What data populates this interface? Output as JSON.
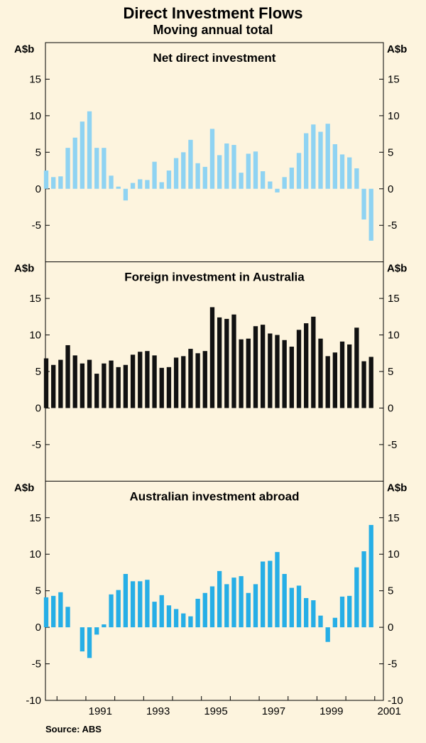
{
  "title": "Direct Investment Flows",
  "subtitle": "Moving annual total",
  "source": "Source: ABS",
  "unit": "A$b",
  "yticks": [
    "15",
    "10",
    "5",
    "0",
    "-5"
  ],
  "bottom_tick": "-10",
  "x_ticks": [
    "1991",
    "1993",
    "1995",
    "1997",
    "1999",
    "2001"
  ],
  "colors": {
    "background": "#fdf4de",
    "net": "#8fd3f2",
    "foreign": "#111111",
    "abroad": "#26aee6",
    "frame": "#000000"
  },
  "chart_data": [
    {
      "type": "bar",
      "title": "Net direct investment",
      "ylabel": "A$b",
      "ylim": [
        -10,
        20
      ],
      "x_range": [
        1989.6,
        2001.3
      ],
      "x_start": 1989.625,
      "x_step": 0.25,
      "values": [
        2.5,
        1.6,
        1.7,
        5.6,
        7.0,
        9.2,
        10.6,
        5.6,
        5.6,
        1.8,
        0.3,
        -1.6,
        0.8,
        1.3,
        1.2,
        3.7,
        0.9,
        2.5,
        4.2,
        5.0,
        6.7,
        3.5,
        3.0,
        8.2,
        4.6,
        6.2,
        6.0,
        2.2,
        4.8,
        5.1,
        2.4,
        1.0,
        -0.5,
        1.6,
        2.9,
        4.9,
        7.6,
        8.8,
        7.8,
        8.9,
        6.1,
        4.7,
        4.3,
        2.8,
        -4.2,
        -7.1
      ]
    },
    {
      "type": "bar",
      "title": "Foreign investment in Australia",
      "ylabel": "A$b",
      "ylim": [
        -10,
        20
      ],
      "x_range": [
        1989.6,
        2001.3
      ],
      "x_start": 1989.625,
      "x_step": 0.25,
      "values": [
        6.8,
        5.9,
        6.6,
        8.6,
        7.2,
        6.1,
        6.6,
        4.7,
        6.1,
        6.5,
        5.6,
        5.9,
        7.3,
        7.7,
        7.8,
        7.2,
        5.5,
        5.6,
        6.9,
        7.1,
        8.1,
        7.5,
        7.8,
        13.8,
        12.4,
        12.2,
        12.8,
        9.4,
        9.5,
        11.2,
        11.4,
        10.2,
        10.0,
        9.3,
        8.4,
        10.7,
        11.6,
        12.5,
        9.5,
        7.1,
        7.6,
        9.1,
        8.7,
        11.0,
        6.4,
        7.0
      ]
    },
    {
      "type": "bar",
      "title": "Australian investment abroad",
      "ylabel": "A$b",
      "ylim": [
        -10,
        20
      ],
      "x_range": [
        1989.6,
        2001.3
      ],
      "x_start": 1989.625,
      "x_step": 0.25,
      "values": [
        4.1,
        4.3,
        4.8,
        2.8,
        0.0,
        -3.3,
        -4.2,
        -1.0,
        0.4,
        4.5,
        5.1,
        7.3,
        6.3,
        6.3,
        6.5,
        3.5,
        4.4,
        3.0,
        2.5,
        1.9,
        1.5,
        3.9,
        4.7,
        5.6,
        7.7,
        5.9,
        6.8,
        7.0,
        4.7,
        5.9,
        9.0,
        9.1,
        10.3,
        7.3,
        5.4,
        5.7,
        4.0,
        3.7,
        1.6,
        -2.0,
        1.3,
        4.2,
        4.3,
        8.2,
        10.4,
        14.0
      ]
    }
  ]
}
